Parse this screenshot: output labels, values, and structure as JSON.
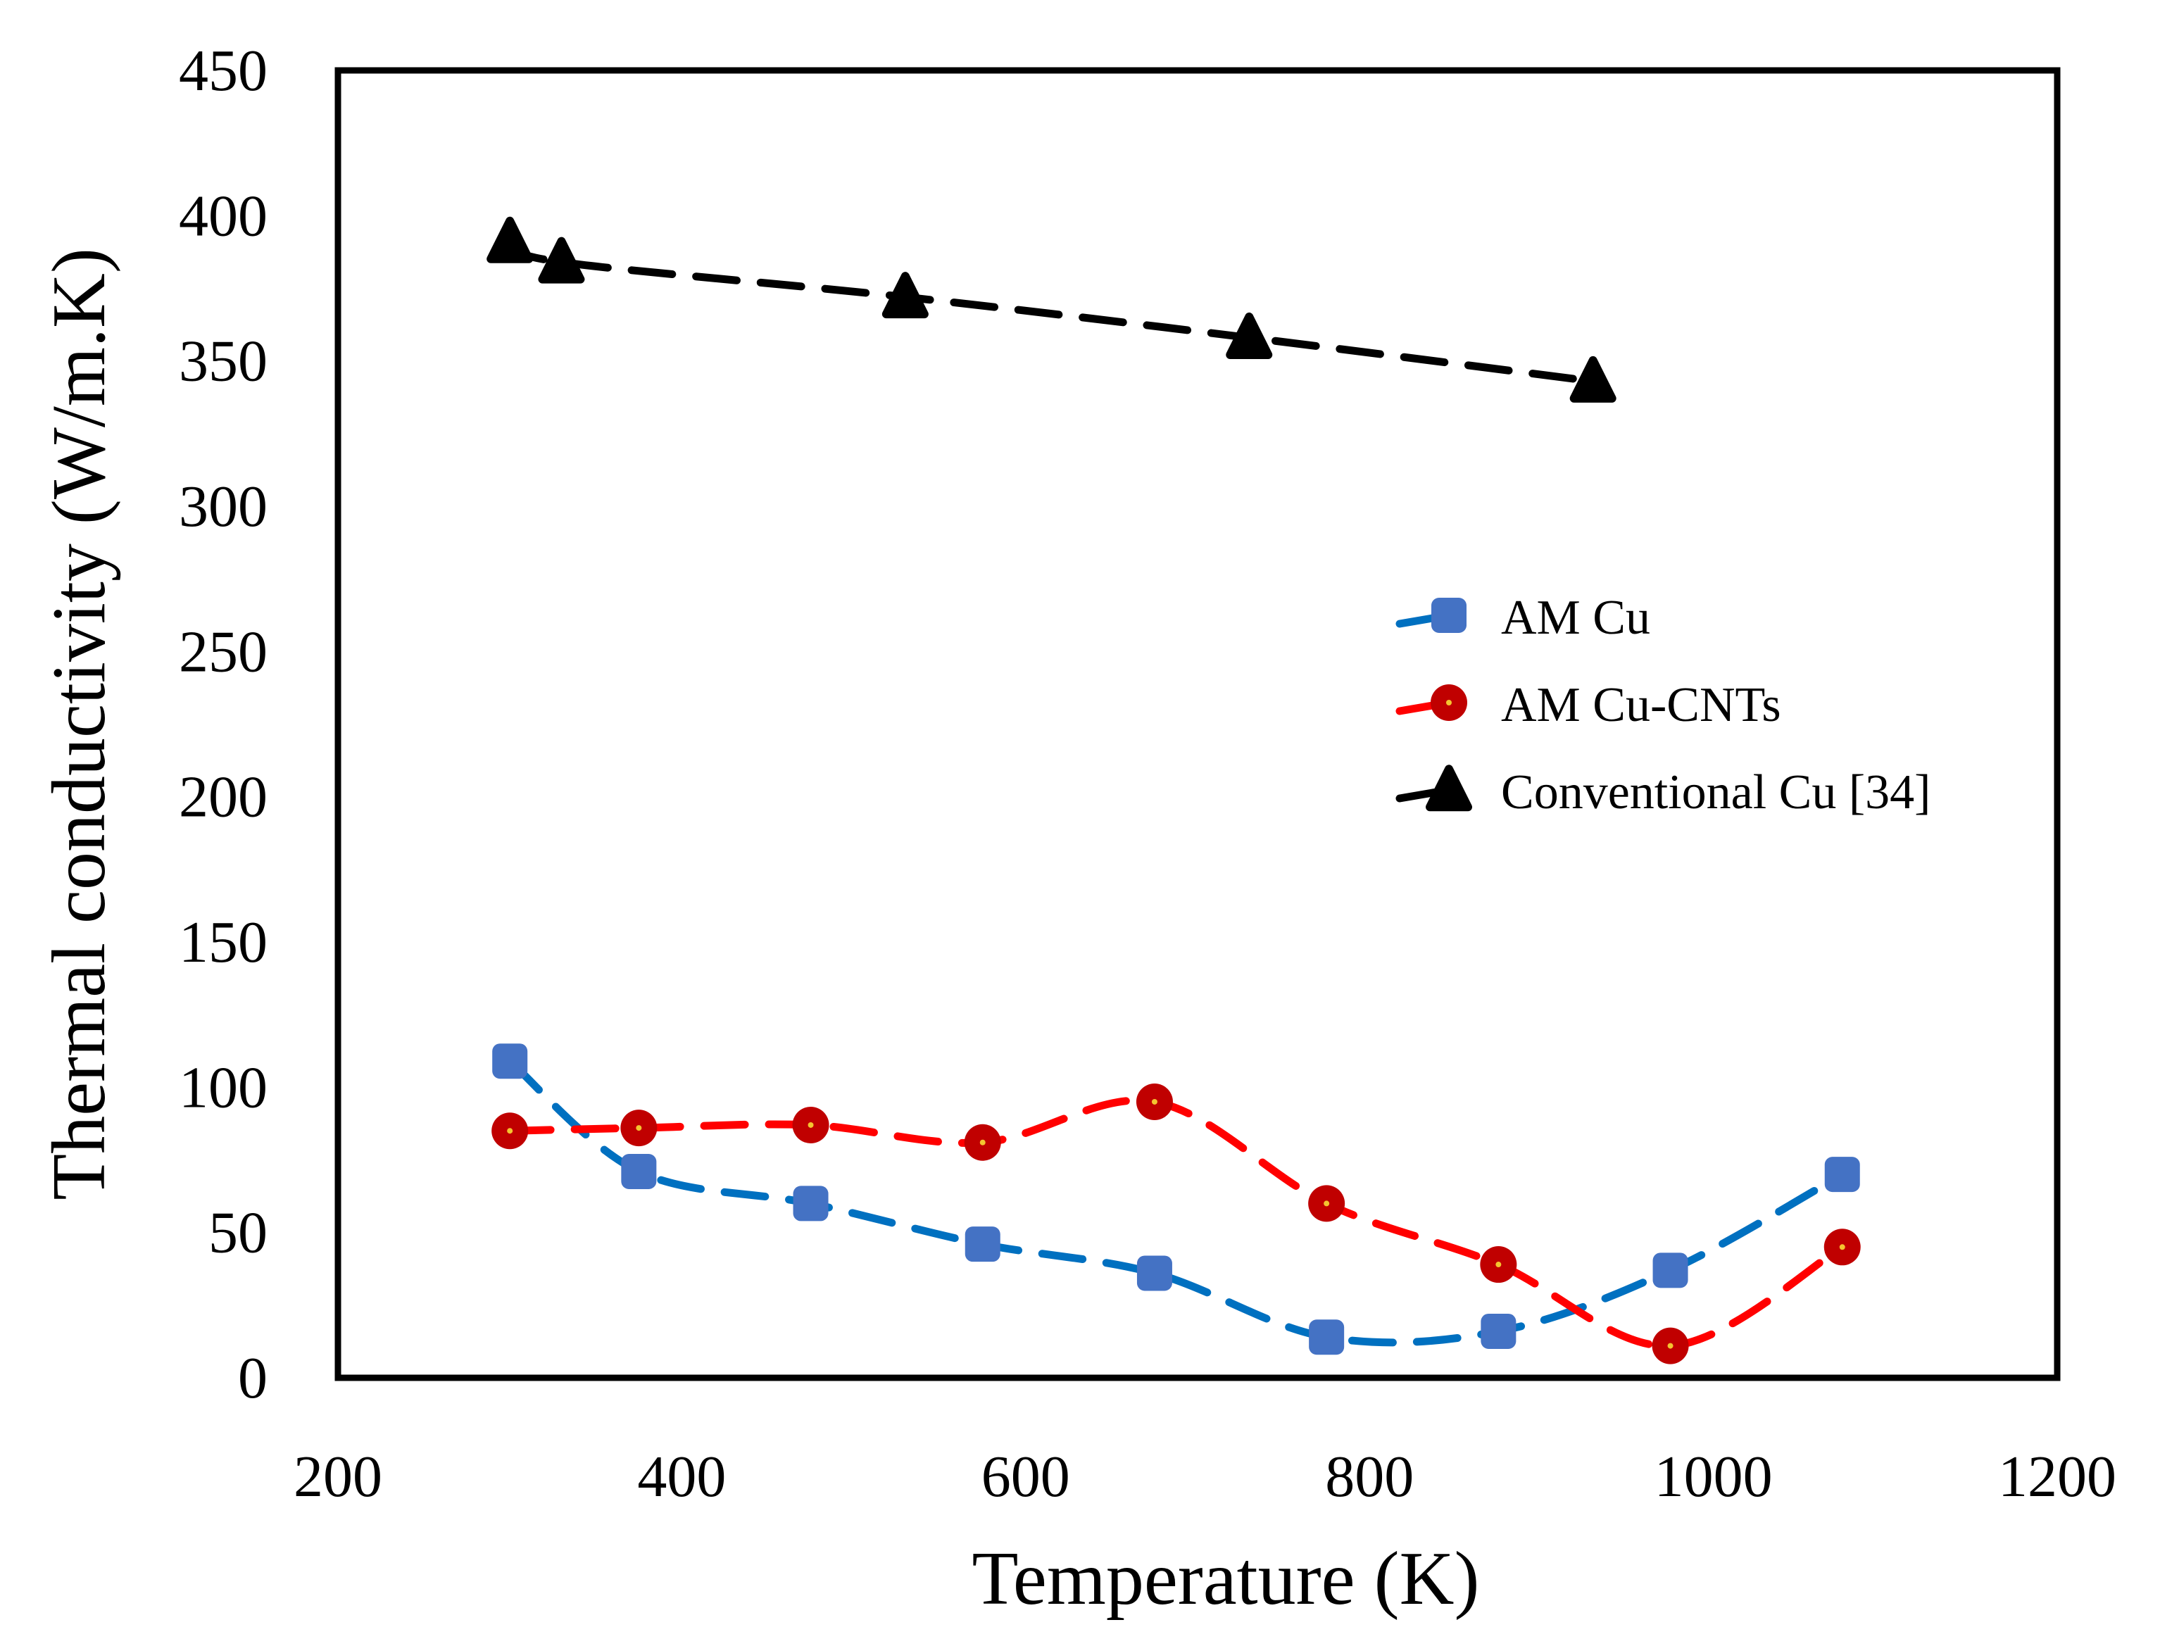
{
  "chart_data": {
    "type": "line",
    "title": "",
    "xlabel": "Temperature (K)",
    "ylabel": "Thermal conductivity (W/m.K)",
    "xlim": [
      200,
      1200
    ],
    "ylim": [
      0,
      450
    ],
    "xticks": [
      200,
      400,
      600,
      800,
      1000,
      1200
    ],
    "yticks": [
      0,
      50,
      100,
      150,
      200,
      250,
      300,
      350,
      400,
      450
    ],
    "grid": false,
    "legend_position": "center-right",
    "series": [
      {
        "name": "AM Cu",
        "color": "#4472c4",
        "line_color": "#0070c0",
        "marker": "square",
        "x": [
          300,
          375,
          475,
          575,
          675,
          775,
          875,
          975,
          1075
        ],
        "y": [
          109,
          71,
          60,
          46,
          36,
          14,
          16,
          37,
          70
        ]
      },
      {
        "name": "AM Cu-CNTs",
        "color": "#c00000",
        "line_color": "#ff0000",
        "marker": "circle",
        "x": [
          300,
          375,
          475,
          575,
          675,
          775,
          875,
          975,
          1075
        ],
        "y": [
          85,
          86,
          87,
          81,
          95,
          60,
          39,
          11,
          45
        ]
      },
      {
        "name": "Conventional Cu [34]",
        "color": "#000000",
        "line_color": "#000000",
        "marker": "triangle",
        "x": [
          300,
          330,
          530,
          730,
          930
        ],
        "y": [
          391,
          384,
          372,
          358,
          343
        ]
      }
    ]
  }
}
